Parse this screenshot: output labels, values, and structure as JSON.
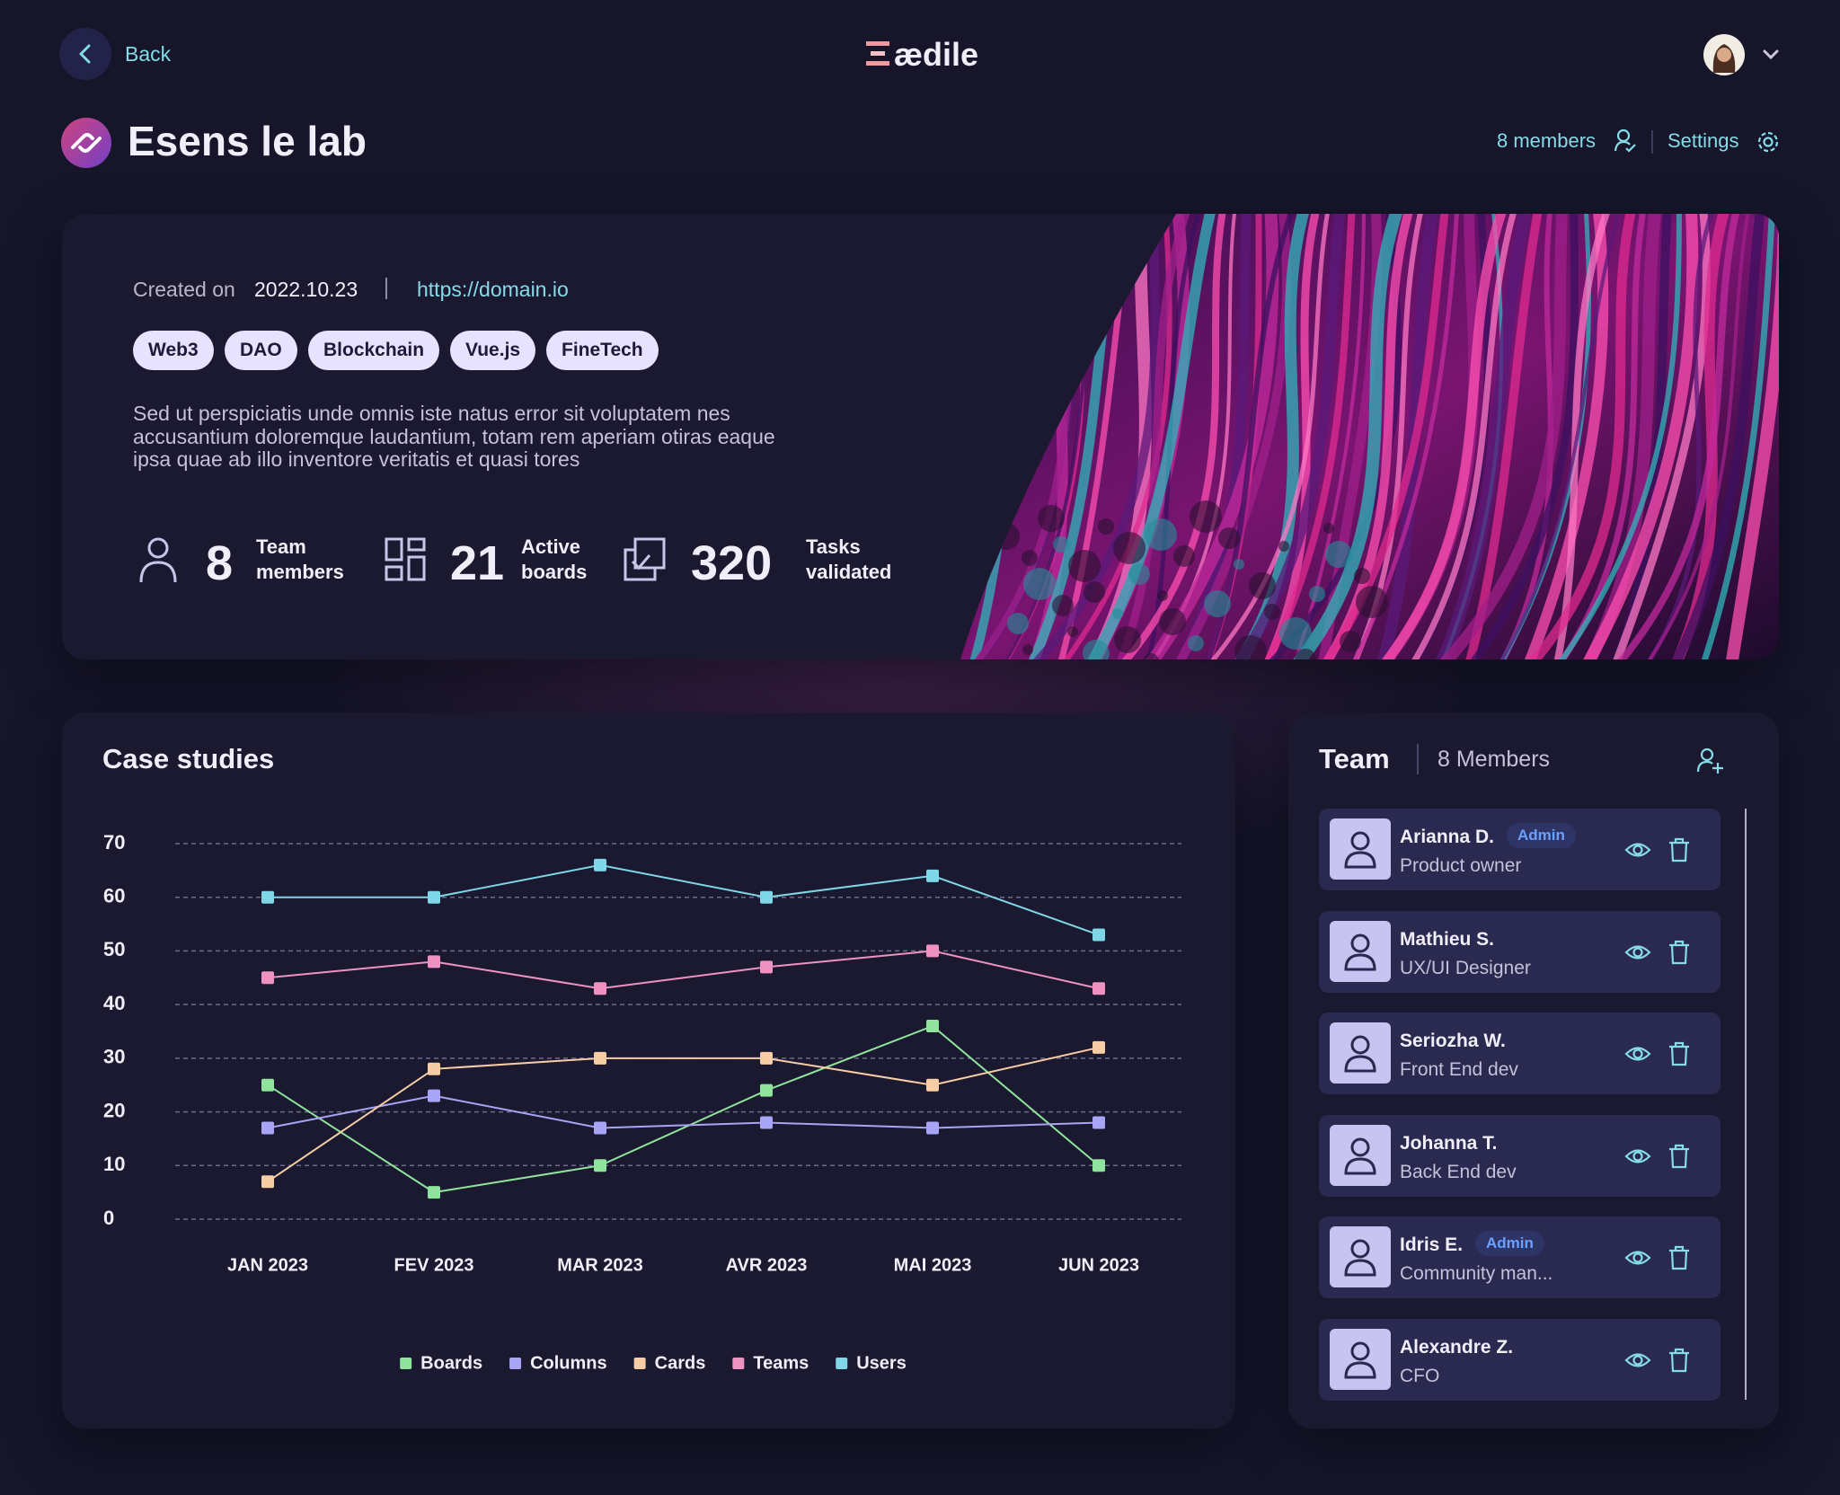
{
  "header": {
    "back": "Back",
    "logo": "ædile"
  },
  "project": {
    "title": "Esens le lab",
    "members_link": "8 members",
    "settings": "Settings",
    "created_label": "Created on",
    "created_date": "2022.10.23",
    "url": "https://domain.io",
    "tags": [
      "Web3",
      "DAO",
      "Blockchain",
      "Vue.js",
      "FineTech"
    ],
    "description": "Sed ut perspiciatis unde omnis iste natus error sit voluptatem nes accusantium doloremque laudantium, totam rem aperiam otiras eaque ipsa quae ab illo inventore veritatis et quasi tores",
    "stats": [
      {
        "value": 8,
        "label": "Team members"
      },
      {
        "value": 21,
        "label": "Active boards"
      },
      {
        "value": 320,
        "label": "Tasks validated"
      }
    ]
  },
  "chart_data": {
    "type": "line",
    "title": "Case studies",
    "categories": [
      "JAN 2023",
      "FEV 2023",
      "MAR 2023",
      "AVR 2023",
      "MAI 2023",
      "JUN 2023"
    ],
    "series": [
      {
        "name": "Boards",
        "color": "#8fe39c",
        "values": [
          25,
          5,
          10,
          24,
          36,
          10
        ]
      },
      {
        "name": "Columns",
        "color": "#a9a5f6",
        "values": [
          17,
          23,
          17,
          18,
          17,
          18
        ]
      },
      {
        "name": "Cards",
        "color": "#f7cda6",
        "values": [
          7,
          28,
          30,
          30,
          25,
          32
        ]
      },
      {
        "name": "Teams",
        "color": "#ef92c2",
        "values": [
          45,
          48,
          43,
          47,
          50,
          43
        ]
      },
      {
        "name": "Users",
        "color": "#7fd6e6",
        "values": [
          60,
          60,
          66,
          60,
          64,
          53
        ]
      }
    ],
    "ylim": [
      0,
      70
    ],
    "yticks": [
      0,
      10,
      20,
      30,
      40,
      50,
      60,
      70
    ],
    "grid": true
  },
  "team": {
    "title": "Team",
    "count": "8 Members",
    "members": [
      {
        "name": "Arianna D.",
        "badge": "Admin",
        "role": "Product owner"
      },
      {
        "name": "Mathieu S.",
        "role": "UX/UI Designer"
      },
      {
        "name": "Seriozha W.",
        "role": "Front End dev"
      },
      {
        "name": "Johanna T.",
        "role": "Back End dev"
      },
      {
        "name": "Idris E.",
        "badge": "Admin",
        "role": "Community man..."
      },
      {
        "name": "Alexandre Z.",
        "role": "CFO"
      }
    ]
  }
}
